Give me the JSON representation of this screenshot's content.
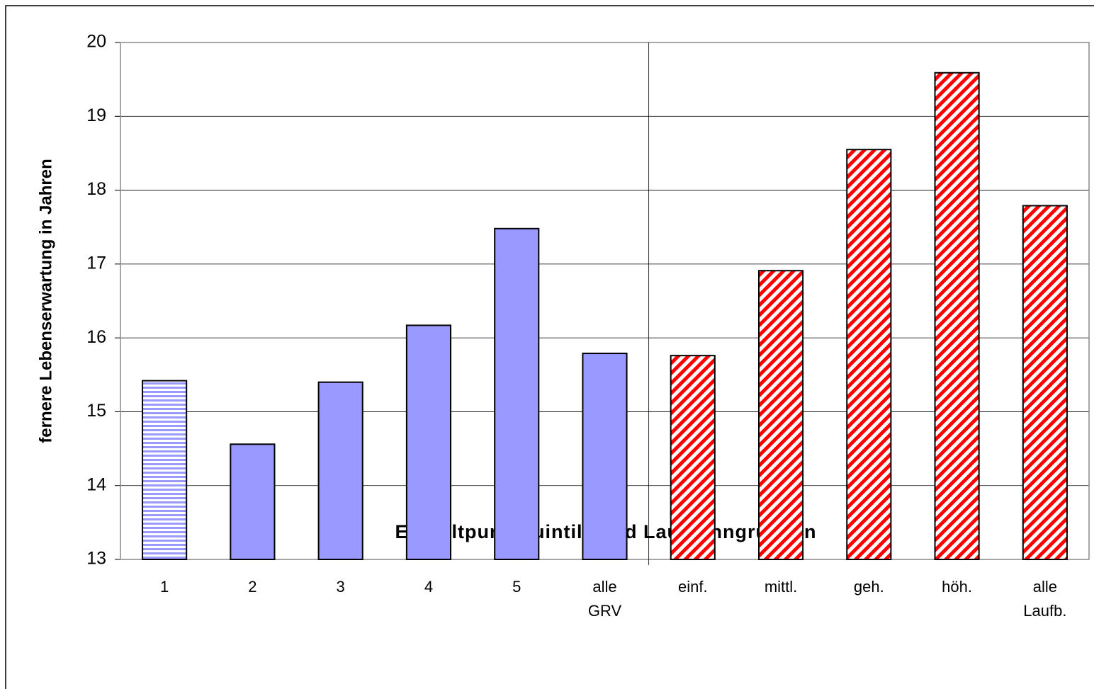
{
  "chart_data": {
    "type": "bar",
    "x_label": "Entgeltpunktquintile und Laufbahngruppen",
    "y_label": "fernere Lebenserwartung in Jahren",
    "categories": [
      "1",
      "2",
      "3",
      "4",
      "5",
      "alle GRV",
      "einf.",
      "mittl.",
      "geh.",
      "höh.",
      "alle Laufb."
    ],
    "values": [
      15.42,
      14.56,
      15.4,
      16.17,
      17.48,
      15.79,
      15.76,
      16.91,
      18.55,
      19.59,
      17.79
    ],
    "colors": [
      "#9999ff",
      "#9999ff",
      "#9999ff",
      "#9999ff",
      "#9999ff",
      "#9999ff",
      "#ff0000",
      "#ff0000",
      "#ff0000",
      "#ff0000",
      "#ff0000"
    ],
    "fills": [
      "horizontal-stripes",
      "solid",
      "solid",
      "solid",
      "solid",
      "solid",
      "diagonal-stripes",
      "diagonal-stripes",
      "diagonal-stripes",
      "diagonal-stripes",
      "diagonal-stripes"
    ],
    "ylim": [
      13,
      20
    ],
    "yticks": [
      13,
      14,
      15,
      16,
      17,
      18,
      19,
      20
    ],
    "grid": true
  }
}
